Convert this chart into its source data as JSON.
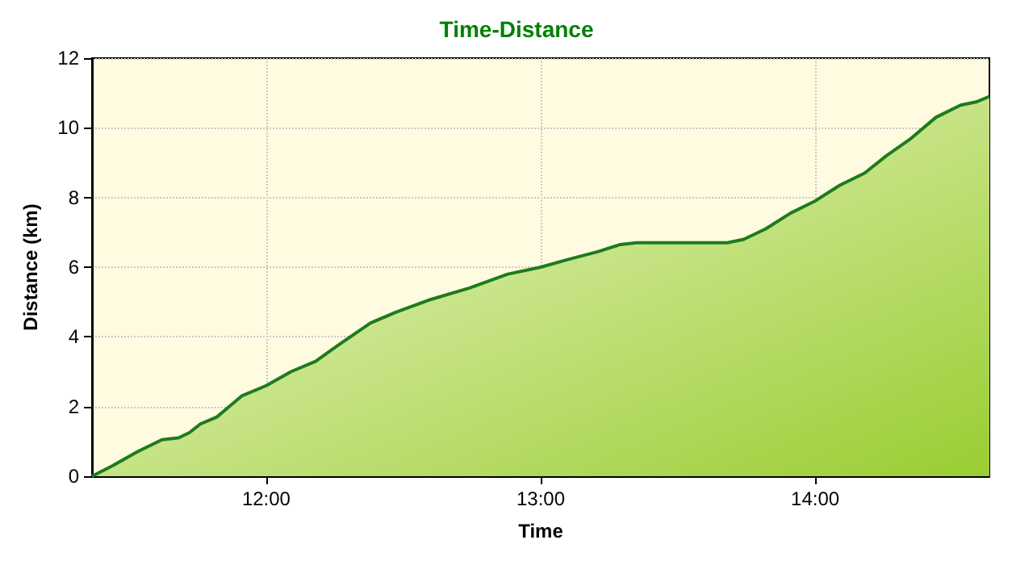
{
  "chart_data": {
    "type": "area",
    "title": "Time-Distance",
    "xlabel": "Time",
    "ylabel": "Distance (km)",
    "x": [
      11.365,
      11.44,
      11.53,
      11.62,
      11.68,
      11.72,
      11.76,
      11.82,
      11.91,
      12.0,
      12.09,
      12.18,
      12.26,
      12.38,
      12.47,
      12.59,
      12.74,
      12.88,
      13.0,
      13.09,
      13.21,
      13.29,
      13.35,
      13.5,
      13.68,
      13.74,
      13.82,
      13.91,
      14.0,
      14.09,
      14.18,
      14.26,
      14.35,
      14.44,
      14.53,
      14.59,
      14.635
    ],
    "series": [
      {
        "color": "#1e7b1e",
        "values": [
          0,
          0.3,
          0.7,
          1.05,
          1.1,
          1.25,
          1.5,
          1.7,
          2.3,
          2.6,
          3.0,
          3.3,
          3.75,
          4.4,
          4.7,
          5.05,
          5.4,
          5.8,
          6.0,
          6.2,
          6.45,
          6.65,
          6.7,
          6.7,
          6.7,
          6.8,
          7.1,
          7.55,
          7.9,
          8.35,
          8.7,
          9.2,
          9.7,
          10.3,
          10.65,
          10.75,
          10.9
        ]
      }
    ],
    "xlim": [
      11.365,
      14.635
    ],
    "xticks": [
      {
        "value": 12,
        "label": "12:00"
      },
      {
        "value": 13,
        "label": "13:00"
      },
      {
        "value": 14,
        "label": "14:00"
      }
    ],
    "ylim": [
      0,
      12
    ],
    "yticks": [
      0,
      2,
      4,
      6,
      8,
      10,
      12
    ],
    "grid": true
  }
}
